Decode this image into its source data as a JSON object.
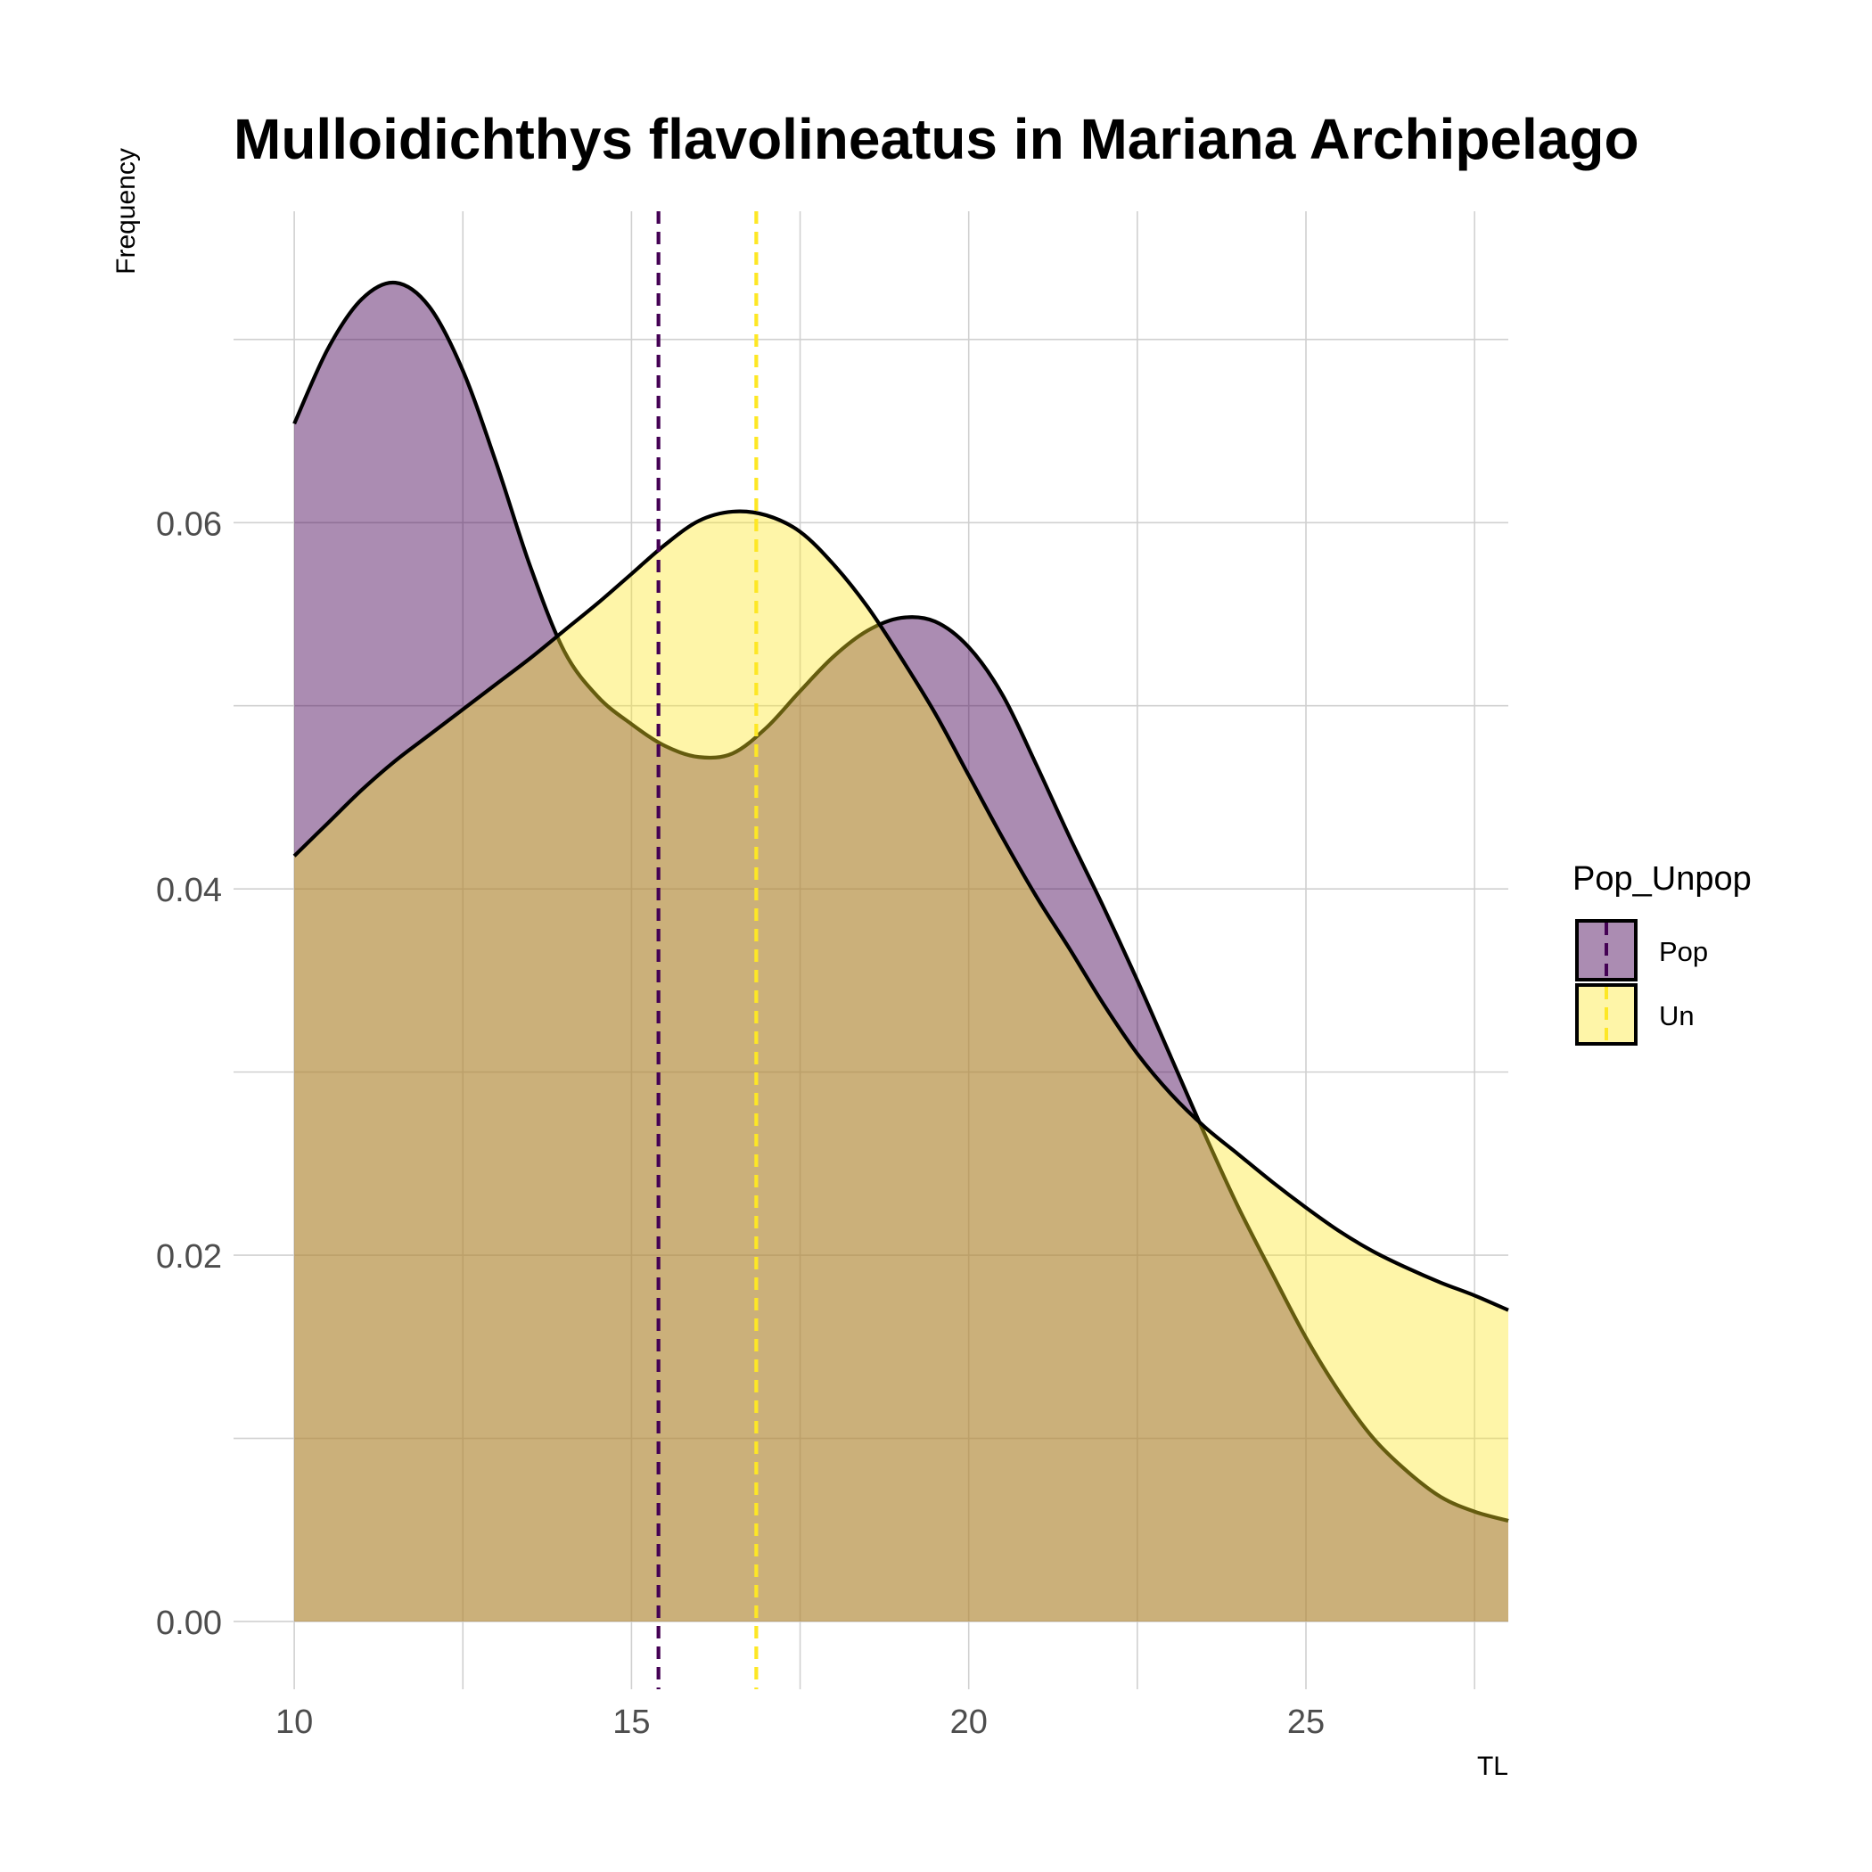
{
  "chart_data": {
    "type": "area",
    "title": "Mulloidichthys flavolineatus in Mariana Archipelago",
    "xlabel": "TL",
    "ylabel": "Frequency",
    "xlim": [
      9.1,
      28.0
    ],
    "ylim": [
      -0.0037,
      0.077
    ],
    "x_ticks": [
      10,
      15,
      20,
      25
    ],
    "y_ticks": [
      0.0,
      0.02,
      0.04,
      0.06
    ],
    "x_tick_labels": [
      "10",
      "15",
      "20",
      "25"
    ],
    "y_tick_labels": [
      "0.00",
      "0.02",
      "0.04",
      "0.06"
    ],
    "grid": true,
    "legend": {
      "title": "Pop_Unpop",
      "position": "right"
    },
    "series": [
      {
        "name": "Pop",
        "fill": "#440154",
        "fill_opacity": 0.45,
        "mean_line_color": "#440154",
        "mean": 15.4,
        "x": [
          10,
          10.5,
          11,
          11.5,
          12,
          12.5,
          13,
          13.5,
          14,
          14.5,
          15,
          15.5,
          16,
          16.5,
          17,
          17.5,
          18,
          18.5,
          19,
          19.5,
          20,
          20.5,
          21,
          21.5,
          22,
          22.5,
          23,
          23.5,
          24,
          24.5,
          25,
          25.5,
          26,
          26.5,
          27,
          27.5,
          28
        ],
        "y": [
          0.0654,
          0.0695,
          0.0722,
          0.0731,
          0.0718,
          0.0683,
          0.0632,
          0.0576,
          0.053,
          0.0505,
          0.049,
          0.0478,
          0.0472,
          0.0474,
          0.0488,
          0.0508,
          0.0527,
          0.0541,
          0.0548,
          0.0546,
          0.0532,
          0.0506,
          0.0468,
          0.0428,
          0.039,
          0.035,
          0.0308,
          0.0266,
          0.0226,
          0.019,
          0.0155,
          0.0125,
          0.01,
          0.0082,
          0.0068,
          0.006,
          0.0055
        ]
      },
      {
        "name": "Un",
        "fill": "#FDE725",
        "fill_opacity": 0.4,
        "mean_line_color": "#FDE725",
        "mean": 16.85,
        "x": [
          10,
          10.5,
          11,
          11.5,
          12,
          12.5,
          13,
          13.5,
          14,
          14.5,
          15,
          15.5,
          16,
          16.5,
          17,
          17.5,
          18,
          18.5,
          19,
          19.5,
          20,
          20.5,
          21,
          21.5,
          22,
          22.5,
          23,
          23.5,
          24,
          24.5,
          25,
          25.5,
          26,
          26.5,
          27,
          27.5,
          28
        ],
        "y": [
          0.0418,
          0.0436,
          0.0454,
          0.047,
          0.0484,
          0.0498,
          0.0512,
          0.0526,
          0.0541,
          0.0556,
          0.0572,
          0.0588,
          0.0601,
          0.0606,
          0.0604,
          0.0595,
          0.0577,
          0.0554,
          0.0526,
          0.0496,
          0.0462,
          0.0428,
          0.0396,
          0.0367,
          0.0337,
          0.031,
          0.0288,
          0.027,
          0.0255,
          0.024,
          0.0226,
          0.0213,
          0.0202,
          0.0193,
          0.0185,
          0.0178,
          0.017
        ]
      }
    ]
  }
}
